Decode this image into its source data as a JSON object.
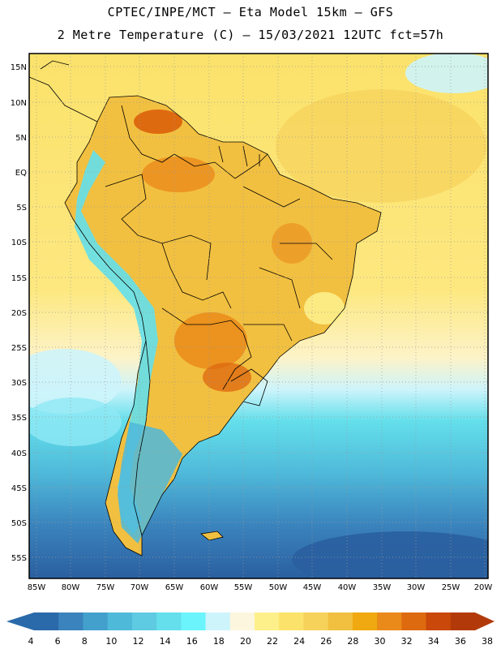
{
  "header": {
    "line1": "CPTEC/INPE/MCT –  Eta Model 15km – GFS",
    "line2": "2 Metre Temperature (C) – 15/03/2021 12UTC fct=57h"
  },
  "axes": {
    "lat_labels": [
      "15N",
      "10N",
      "5N",
      "EQ",
      "5S",
      "10S",
      "15S",
      "20S",
      "25S",
      "30S",
      "35S",
      "40S",
      "45S",
      "50S",
      "55S"
    ],
    "lon_labels": [
      "85W",
      "80W",
      "75W",
      "70W",
      "65W",
      "60W",
      "55W",
      "50W",
      "45W",
      "40W",
      "35W",
      "30W",
      "25W",
      "20W"
    ]
  },
  "legend": {
    "labels": [
      "4",
      "6",
      "8",
      "10",
      "12",
      "14",
      "16",
      "18",
      "20",
      "22",
      "24",
      "26",
      "28",
      "30",
      "32",
      "34",
      "36",
      "38"
    ],
    "colors": [
      "#2a6aaa",
      "#3a83bd",
      "#43a0cc",
      "#4fb9da",
      "#5ecbe2",
      "#64dfeb",
      "#6bf4fb",
      "#cdf4fb",
      "#fdf6df",
      "#fdf08a",
      "#fbe26b",
      "#f6d25b",
      "#f2c040",
      "#f0a910",
      "#ea8a1a",
      "#de6a10",
      "#c9480a",
      "#b23a0a"
    ]
  },
  "colors": {
    "ocean_warm": "#fbe26b",
    "ocean_cold": "#43a0cc",
    "land_hot": "#e89530",
    "border": "#000000"
  }
}
